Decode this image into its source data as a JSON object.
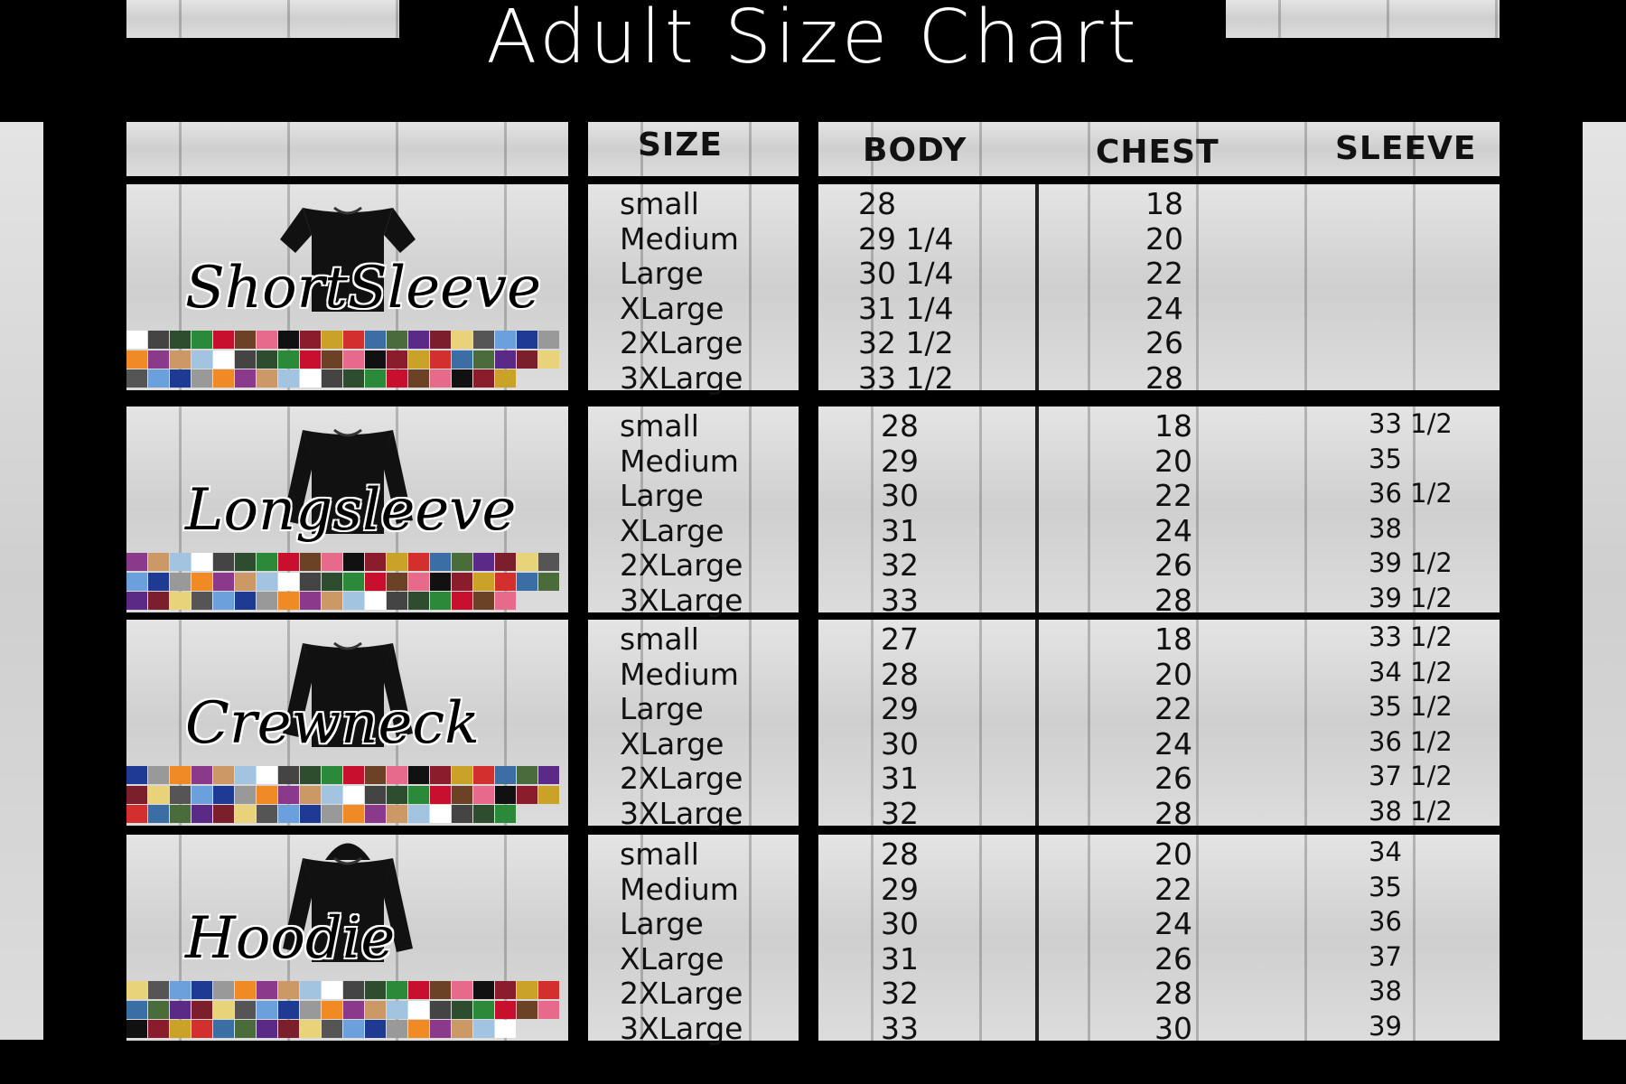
{
  "title": "Adult Size Chart",
  "headers": {
    "size": "SIZE",
    "body": "BODY",
    "chest": "CHEST",
    "sleeve": "SLEEVE"
  },
  "sections": [
    {
      "name": "ShortSleeve",
      "rows": [
        {
          "size": "small",
          "body": "28",
          "chest": "18"
        },
        {
          "size": "Medium",
          "body": "29 1/4",
          "chest": "20"
        },
        {
          "size": "Large",
          "body": "30 1/4",
          "chest": "22"
        },
        {
          "size": "XLarge",
          "body": "31 1/4",
          "chest": "24"
        },
        {
          "size": "2XLarge",
          "body": "32 1/2",
          "chest": "26"
        },
        {
          "size": "3XLarge",
          "body": "33 1/2",
          "chest": "28"
        }
      ]
    },
    {
      "name": "Longsleeve",
      "rows": [
        {
          "size": "small",
          "body": "28",
          "chest": "18",
          "sleeve": "33 1/2"
        },
        {
          "size": "Medium",
          "body": "29",
          "chest": "20",
          "sleeve": "35"
        },
        {
          "size": "Large",
          "body": "30",
          "chest": "22",
          "sleeve": "36 1/2"
        },
        {
          "size": "XLarge",
          "body": "31",
          "chest": "24",
          "sleeve": "38"
        },
        {
          "size": "2XLarge",
          "body": "32",
          "chest": "26",
          "sleeve": "39 1/2"
        },
        {
          "size": "3XLarge",
          "body": "33",
          "chest": "28",
          "sleeve": "39 1/2"
        }
      ]
    },
    {
      "name": "Crewneck",
      "rows": [
        {
          "size": "small",
          "body": "27",
          "chest": "18",
          "sleeve": "33 1/2"
        },
        {
          "size": "Medium",
          "body": "28",
          "chest": "20",
          "sleeve": "34 1/2"
        },
        {
          "size": "Large",
          "body": "29",
          "chest": "22",
          "sleeve": "35 1/2"
        },
        {
          "size": "XLarge",
          "body": "30",
          "chest": "24",
          "sleeve": "36 1/2"
        },
        {
          "size": "2XLarge",
          "body": "31",
          "chest": "26",
          "sleeve": "37 1/2"
        },
        {
          "size": "3XLarge",
          "body": "32",
          "chest": "28",
          "sleeve": "38 1/2"
        }
      ]
    },
    {
      "name": "Hoodie",
      "rows": [
        {
          "size": "small",
          "body": "28",
          "chest": "20",
          "sleeve": "34"
        },
        {
          "size": "Medium",
          "body": "29",
          "chest": "22",
          "sleeve": "35"
        },
        {
          "size": "Large",
          "body": "30",
          "chest": "24",
          "sleeve": "36"
        },
        {
          "size": "XLarge",
          "body": "31",
          "chest": "26",
          "sleeve": "37"
        },
        {
          "size": "2XLarge",
          "body": "32",
          "chest": "28",
          "sleeve": "38"
        },
        {
          "size": "3XLarge",
          "body": "33",
          "chest": "30",
          "sleeve": "39"
        }
      ]
    }
  ]
}
